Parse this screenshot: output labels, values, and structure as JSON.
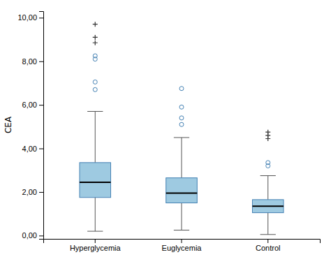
{
  "chart_data": {
    "type": "box",
    "categories": [
      "Hyperglycemia",
      "Euglycemia",
      "Control"
    ],
    "boxes": [
      {
        "median": 2.45,
        "q1": 1.75,
        "q3": 3.35,
        "whislo": 0.2,
        "whishi": 5.7,
        "outliers": [
          6.7,
          7.05,
          8.1,
          8.25
        ],
        "extremes": [
          8.85,
          9.1,
          9.7
        ]
      },
      {
        "median": 1.95,
        "q1": 1.5,
        "q3": 2.65,
        "whislo": 0.25,
        "whishi": 4.5,
        "outliers": [
          5.1,
          5.4,
          5.9,
          6.75
        ],
        "extremes": []
      },
      {
        "median": 1.35,
        "q1": 1.05,
        "q3": 1.65,
        "whislo": 0.05,
        "whishi": 2.75,
        "outliers": [
          3.2,
          3.35
        ],
        "extremes": [
          4.45,
          4.6,
          4.75
        ]
      }
    ],
    "ylabel": "CEA",
    "ylim": [
      -0.15,
      10.3
    ],
    "yticks": [
      {
        "value": 0.0,
        "label": "0,00"
      },
      {
        "value": 2.0,
        "label": "2,00"
      },
      {
        "value": 4.0,
        "label": "4,00"
      },
      {
        "value": 6.0,
        "label": "6,00"
      },
      {
        "value": 8.0,
        "label": "8,00"
      },
      {
        "value": 10.0,
        "label": "10,00"
      }
    ],
    "grid": false
  }
}
